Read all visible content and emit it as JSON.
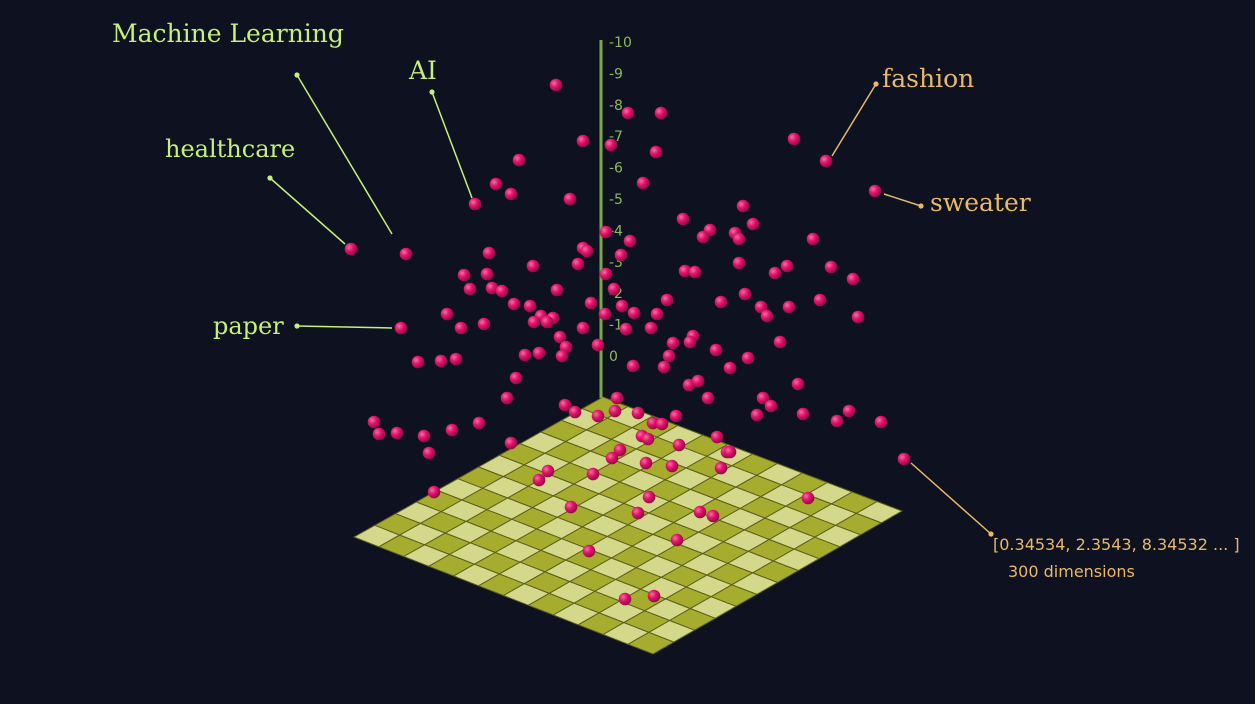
{
  "labels": {
    "machine_learning": "Machine Learning",
    "ai": "AI",
    "healthcare": "healthcare",
    "paper": "paper",
    "fashion": "fashion",
    "sweater": "sweater"
  },
  "vector": {
    "values": "[0.34534, 2.3543, 8.34532 ... ]",
    "dimensions": "300 dimensions"
  },
  "axis_ticks": [
    "-10",
    "-9",
    "-8",
    "-7",
    "-6",
    "-5",
    "-4",
    "-3",
    "-2",
    "-1",
    "0"
  ],
  "colors": {
    "background": "#0d1120",
    "point": "#e0146a",
    "word_green": "#c6f07a",
    "word_orange": "#e9b869",
    "grid_dark": "#a6ad2e",
    "grid_light": "#d3d88a"
  }
}
